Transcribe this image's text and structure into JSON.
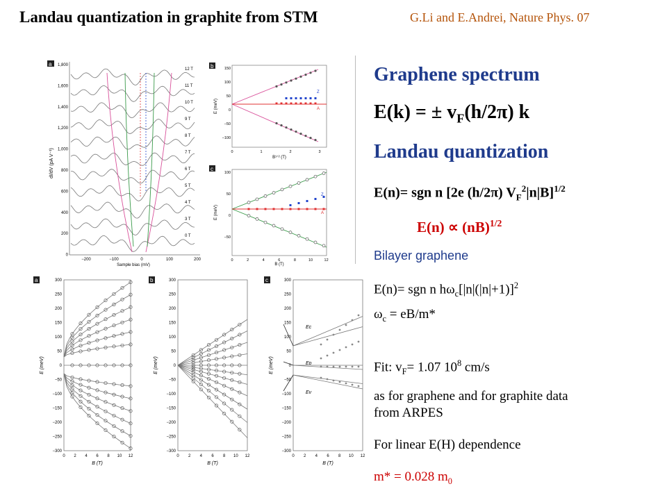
{
  "header": {
    "title": "Landau quantization in graphite from STM",
    "citation": "G.Li and E.Andrei, Nature Phys. 07"
  },
  "panels": {
    "a_top": {
      "label": "a",
      "ylabel": "dI/dV (pA V⁻¹)",
      "xlabel": "Sample bias (mV)",
      "yticks": [
        "1,800",
        "1,600",
        "1,400",
        "1,200",
        "1,000",
        "800",
        "600",
        "400",
        "200",
        "0"
      ],
      "xticks": [
        "−200",
        "−100",
        "0",
        "100",
        "200"
      ],
      "field_labels": [
        "12 T",
        "11 T",
        "10 T",
        "9 T",
        "8 T",
        "7 T",
        "6 T",
        "5 T",
        "4 T",
        "3 T",
        "0 T"
      ]
    },
    "b_top": {
      "label": "b",
      "ylabel": "E (meV)",
      "xlabel": "B¹ᐟ² (T)",
      "yticks": [
        "150",
        "100",
        "50",
        "0",
        "−50",
        "−100"
      ],
      "xticks": [
        "0",
        "1",
        "2",
        "3"
      ],
      "annotations": [
        "Z",
        "A"
      ]
    },
    "c_top": {
      "label": "c",
      "ylabel": "E (meV)",
      "xlabel": "B (T)",
      "yticks": [
        "100",
        "50",
        "0",
        "−50"
      ],
      "xticks": [
        "0",
        "2",
        "4",
        "6",
        "8",
        "10",
        "12"
      ],
      "annotations": [
        "Z",
        "A"
      ]
    },
    "bottom_common": {
      "ylabel": "E (meV)",
      "xlabel": "B (T)",
      "yticks": [
        "300",
        "250",
        "200",
        "150",
        "100",
        "50",
        "0",
        "−50",
        "−100",
        "−150",
        "−200",
        "−250",
        "−300"
      ],
      "xticks": [
        "0",
        "2",
        "4",
        "6",
        "8",
        "10",
        "12"
      ]
    },
    "a_bottom": {
      "label": "a"
    },
    "b_bottom": {
      "label": "b"
    },
    "c_bottom": {
      "label": "c",
      "annotations": [
        "Eᴄ",
        "Eᴅ",
        "Eᴠ"
      ]
    }
  },
  "text": {
    "graphene_spectrum": "Graphene spectrum",
    "landau_quantization": "Landau quantization",
    "bilayer": "Bilayer graphene",
    "omega_c_def": "= eB/m*",
    "fit_prefix": "Fit: v",
    "fit_value": "= 1.07 10",
    "fit_exp": "8",
    "fit_unit": " cm/s",
    "as_for_graphene": "as for graphene and for graphite data",
    "from_arpes": "from ARPES",
    "linear": "For linear E(H) dependence",
    "mstar": "m* = 0.028 m"
  },
  "colors": {
    "title": "#000000",
    "citation": "#b45309",
    "heading_blue": "#1f3b8c",
    "red": "#cc0000",
    "blue_text": "#1f3b8c",
    "pink_curve": "#d9509a",
    "green_curve": "#3a9a4a",
    "red_point": "#e03030",
    "blue_point": "#2244cc"
  }
}
